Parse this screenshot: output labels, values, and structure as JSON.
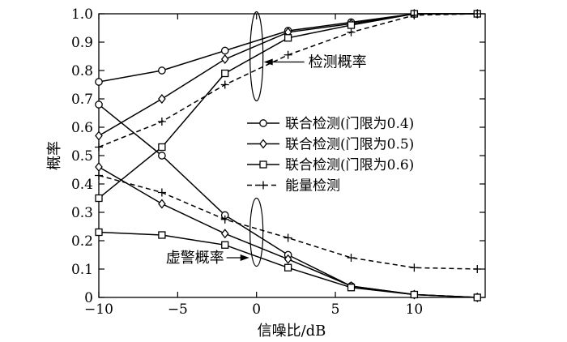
{
  "chart_data": {
    "type": "line",
    "xlabel": "信噪比/dB",
    "ylabel": "概率",
    "xlim": [
      -10,
      14.5
    ],
    "ylim": [
      0,
      1.0
    ],
    "xticks": [
      -10,
      -5,
      0,
      5,
      10
    ],
    "xtick_labels": [
      "−10",
      "−5",
      "0",
      "5",
      "10"
    ],
    "yticks": [
      0,
      0.1,
      0.2,
      0.3,
      0.4,
      0.5,
      0.6,
      0.7,
      0.8,
      0.9,
      1.0
    ],
    "ytick_labels": [
      "0",
      "0.1",
      "0.2",
      "0.3",
      "0.4",
      "0.5",
      "0.6",
      "0.7",
      "0.8",
      "0.9",
      "1.0"
    ],
    "grid": false,
    "legend_position": "right-middle",
    "x": [
      -10,
      -6,
      -2,
      2,
      6,
      10,
      14
    ],
    "series": [
      {
        "name": "联合检测(门限为0.4)",
        "marker": "circle",
        "dash": "solid",
        "group": "detection",
        "values": [
          0.76,
          0.8,
          0.87,
          0.94,
          0.97,
          1.0,
          1.0
        ]
      },
      {
        "name": "联合检测(门限为0.5)",
        "marker": "diamond",
        "dash": "solid",
        "group": "detection",
        "values": [
          0.57,
          0.7,
          0.84,
          0.935,
          0.965,
          1.0,
          1.0
        ]
      },
      {
        "name": "联合检测(门限为0.6)",
        "marker": "square",
        "dash": "solid",
        "group": "detection",
        "values": [
          0.35,
          0.53,
          0.79,
          0.915,
          0.96,
          1.0,
          1.0
        ]
      },
      {
        "name": "能量检测",
        "marker": "plus",
        "dash": "dashed",
        "group": "detection",
        "values": [
          0.53,
          0.62,
          0.75,
          0.855,
          0.935,
          0.995,
          1.0
        ]
      },
      {
        "name": "联合检测(门限为0.4)",
        "marker": "circle",
        "dash": "solid",
        "group": "false_alarm",
        "values": [
          0.68,
          0.5,
          0.29,
          0.15,
          0.04,
          0.01,
          0.0
        ]
      },
      {
        "name": "联合检测(门限为0.5)",
        "marker": "diamond",
        "dash": "solid",
        "group": "false_alarm",
        "values": [
          0.46,
          0.33,
          0.225,
          0.135,
          0.04,
          0.01,
          0.0
        ]
      },
      {
        "name": "联合检测(门限为0.6)",
        "marker": "square",
        "dash": "solid",
        "group": "false_alarm",
        "values": [
          0.23,
          0.22,
          0.185,
          0.105,
          0.035,
          0.01,
          0.0
        ]
      },
      {
        "name": "能量检测",
        "marker": "plus",
        "dash": "dashed",
        "group": "false_alarm",
        "values": [
          0.43,
          0.37,
          0.275,
          0.21,
          0.14,
          0.105,
          0.1
        ]
      }
    ],
    "legend": [
      {
        "label": "联合检测(门限为0.4)",
        "marker": "circle",
        "dash": "solid"
      },
      {
        "label": "联合检测(门限为0.5)",
        "marker": "diamond",
        "dash": "solid"
      },
      {
        "label": "联合检测(门限为0.6)",
        "marker": "square",
        "dash": "solid"
      },
      {
        "label": "能量检测",
        "marker": "plus",
        "dash": "dashed"
      }
    ],
    "annotations": [
      {
        "text": "检测概率",
        "ellipse_center": [
          0,
          0.85
        ],
        "target": [
          0,
          0.83
        ]
      },
      {
        "text": "虚警概率",
        "ellipse_center": [
          0,
          0.23
        ],
        "target": [
          0,
          0.14
        ]
      }
    ]
  }
}
